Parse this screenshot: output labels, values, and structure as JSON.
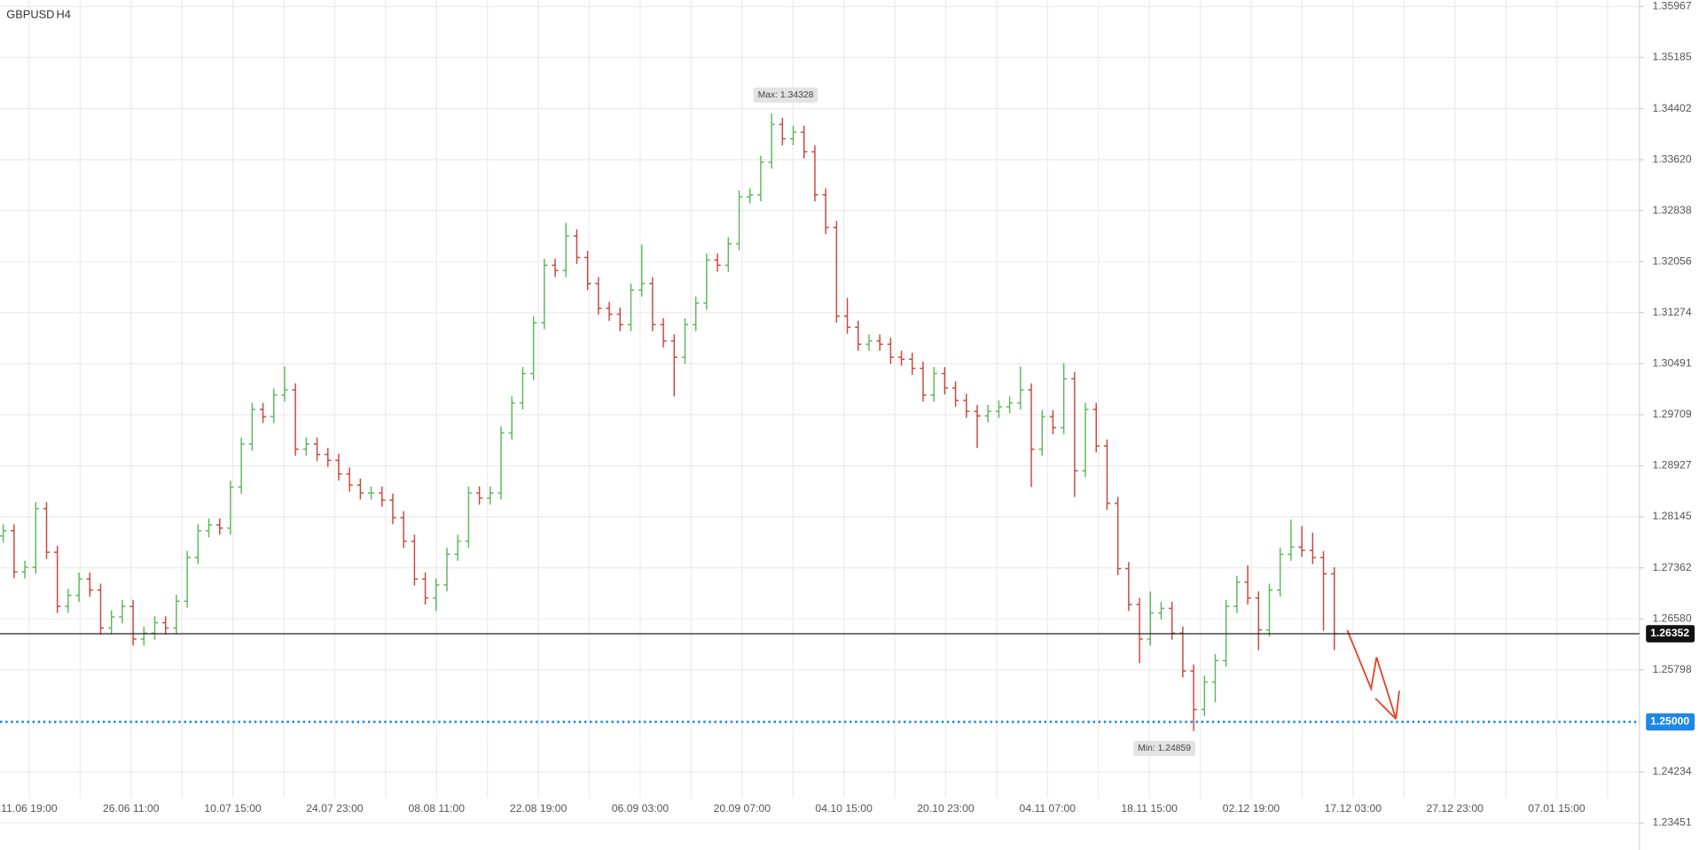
{
  "chart_data": {
    "type": "ohlc",
    "title": "GBPUSD",
    "timeframe": "H4",
    "categories": [
      "11.06 19:00",
      "26.06 11:00",
      "10.07 15:00",
      "24.07 23:00",
      "08.08 11:00",
      "22.08 19:00",
      "06.09 03:00",
      "20.09 07:00",
      "04.10 15:00",
      "20.10 23:00",
      "04.11 07:00",
      "18.11 15:00",
      "02.12 19:00",
      "17.12 03:00",
      "27.12 23:00",
      "07.01 15:00"
    ],
    "open": [
      1.2785,
      1.2793,
      1.273,
      1.2737,
      1.2827,
      1.276,
      1.2677,
      1.2694,
      1.2719,
      1.2702,
      1.2644,
      1.2661,
      1.2677,
      1.2627,
      1.2636,
      1.2652,
      1.2644,
      1.2685,
      1.2752,
      1.2793,
      1.2802,
      1.2797,
      1.286,
      1.2926,
      1.2979,
      1.2968,
      1.3001,
      1.3009,
      1.2918,
      1.2926,
      1.291,
      1.2901,
      1.288,
      1.2863,
      1.2851,
      1.2851,
      1.284,
      1.2813,
      1.2777,
      1.2719,
      1.269,
      1.271,
      1.2757,
      1.2777,
      1.2851,
      1.2843,
      1.2851,
      1.2943,
      1.2989,
      1.3034,
      1.3112,
      1.32,
      1.3192,
      1.3245,
      1.3212,
      1.3172,
      1.3134,
      1.3125,
      1.3109,
      1.3162,
      1.3172,
      1.3109,
      1.3084,
      1.3059,
      1.3109,
      1.3142,
      1.3208,
      1.32,
      1.3233,
      1.3305,
      1.3308,
      1.3358,
      1.3416,
      1.3394,
      1.3404,
      1.3374,
      1.3308,
      1.3258,
      1.3122,
      1.3105,
      1.3079,
      1.3084,
      1.3079,
      1.3059,
      1.3056,
      1.3042,
      1.3001,
      1.3034,
      1.3012,
      1.2993,
      1.2976,
      1.2969,
      1.2976,
      1.2983,
      1.2989,
      1.3009,
      1.2918,
      1.2968,
      1.2951,
      1.3026,
      1.2885,
      1.2979,
      1.2923,
      1.2835,
      1.2735,
      1.268,
      1.2627,
      1.2667,
      1.2674,
      1.2636,
      1.2578,
      1.2519,
      1.2561,
      1.2594,
      1.2677,
      1.2714,
      1.269,
      1.2641,
      1.2702,
      1.2757,
      1.2768,
      1.2763,
      1.2752,
      1.2727
    ],
    "high": [
      1.2803,
      1.2803,
      1.2747,
      1.2837,
      1.2837,
      1.277,
      1.2704,
      1.2729,
      1.2729,
      1.2712,
      1.2671,
      1.2687,
      1.2687,
      1.2646,
      1.2662,
      1.2662,
      1.2695,
      1.2762,
      1.2803,
      1.2812,
      1.2812,
      1.287,
      1.2936,
      1.2989,
      1.2989,
      1.3011,
      1.3045,
      1.3019,
      1.2936,
      1.2936,
      1.292,
      1.2911,
      1.289,
      1.2873,
      1.2861,
      1.2861,
      1.285,
      1.2823,
      1.2787,
      1.2729,
      1.272,
      1.2767,
      1.2787,
      1.2861,
      1.2861,
      1.2861,
      1.2953,
      1.2999,
      1.3044,
      1.3122,
      1.321,
      1.321,
      1.3265,
      1.3255,
      1.3222,
      1.3182,
      1.3144,
      1.3135,
      1.3172,
      1.3232,
      1.3182,
      1.3119,
      1.3094,
      1.3119,
      1.3152,
      1.3218,
      1.3218,
      1.3243,
      1.3315,
      1.3318,
      1.3368,
      1.34328,
      1.3426,
      1.3414,
      1.3414,
      1.3384,
      1.3318,
      1.3268,
      1.315,
      1.3115,
      1.3094,
      1.3094,
      1.3089,
      1.3069,
      1.3066,
      1.3052,
      1.3044,
      1.3044,
      1.3022,
      1.3003,
      1.2986,
      1.2986,
      1.2993,
      1.2999,
      1.3045,
      1.3019,
      1.2978,
      1.2978,
      1.305,
      1.3036,
      1.2989,
      1.2989,
      1.2933,
      1.2845,
      1.2745,
      1.269,
      1.27,
      1.2684,
      1.2684,
      1.2646,
      1.2588,
      1.2571,
      1.2604,
      1.2687,
      1.2724,
      1.274,
      1.27,
      1.2712,
      1.2767,
      1.281,
      1.28,
      1.279,
      1.2762,
      1.2737
    ],
    "low": [
      1.2775,
      1.272,
      1.272,
      1.2727,
      1.275,
      1.2667,
      1.2667,
      1.2684,
      1.2692,
      1.2634,
      1.2634,
      1.2651,
      1.2617,
      1.2617,
      1.2626,
      1.2634,
      1.2634,
      1.2675,
      1.2742,
      1.2783,
      1.2787,
      1.2787,
      1.285,
      1.2916,
      1.2958,
      1.2958,
      1.2991,
      1.2908,
      1.2908,
      1.29,
      1.2891,
      1.287,
      1.2853,
      1.2841,
      1.2841,
      1.283,
      1.2803,
      1.2767,
      1.2709,
      1.268,
      1.267,
      1.27,
      1.2747,
      1.2767,
      1.2833,
      1.2833,
      1.2841,
      1.2933,
      1.2979,
      1.3024,
      1.3102,
      1.3182,
      1.3182,
      1.3202,
      1.3162,
      1.3124,
      1.3115,
      1.3099,
      1.3099,
      1.3152,
      1.3099,
      1.3074,
      1.2999,
      1.3049,
      1.3099,
      1.3132,
      1.319,
      1.319,
      1.3223,
      1.3295,
      1.3298,
      1.3348,
      1.3384,
      1.3384,
      1.3364,
      1.3298,
      1.3248,
      1.3112,
      1.3095,
      1.3069,
      1.3069,
      1.3069,
      1.3049,
      1.3046,
      1.3032,
      1.2991,
      1.2991,
      1.3002,
      1.2983,
      1.2966,
      1.292,
      1.2959,
      1.2966,
      1.2973,
      1.2979,
      1.286,
      1.2908,
      1.2941,
      1.2941,
      1.2845,
      1.2875,
      1.2913,
      1.2825,
      1.2725,
      1.267,
      1.259,
      1.2617,
      1.2657,
      1.2626,
      1.2568,
      1.24859,
      1.2509,
      1.253,
      1.2584,
      1.2667,
      1.268,
      1.261,
      1.2631,
      1.2692,
      1.2747,
      1.2753,
      1.2742,
      1.264,
      1.261
    ],
    "close": [
      1.2793,
      1.273,
      1.2737,
      1.2827,
      1.276,
      1.2677,
      1.2694,
      1.2719,
      1.2702,
      1.2644,
      1.2661,
      1.2677,
      1.2627,
      1.2636,
      1.2652,
      1.2644,
      1.2685,
      1.2752,
      1.2793,
      1.2802,
      1.2797,
      1.286,
      1.2926,
      1.2979,
      1.2968,
      1.3001,
      1.3009,
      1.2918,
      1.2926,
      1.291,
      1.2901,
      1.288,
      1.2863,
      1.2851,
      1.2851,
      1.284,
      1.2813,
      1.2777,
      1.2719,
      1.269,
      1.271,
      1.2757,
      1.2777,
      1.2851,
      1.2843,
      1.2851,
      1.2943,
      1.2989,
      1.3034,
      1.3112,
      1.32,
      1.3192,
      1.3245,
      1.3212,
      1.3172,
      1.3134,
      1.3125,
      1.3109,
      1.3162,
      1.3172,
      1.3109,
      1.3084,
      1.3059,
      1.3109,
      1.3142,
      1.3208,
      1.32,
      1.3233,
      1.3305,
      1.3308,
      1.3358,
      1.3416,
      1.3394,
      1.3404,
      1.3374,
      1.3308,
      1.3258,
      1.3122,
      1.3105,
      1.3079,
      1.3084,
      1.3079,
      1.3059,
      1.3056,
      1.3042,
      1.3001,
      1.3034,
      1.3012,
      1.2993,
      1.2976,
      1.2969,
      1.2976,
      1.2983,
      1.2989,
      1.3009,
      1.2918,
      1.2968,
      1.2951,
      1.3026,
      1.2885,
      1.2979,
      1.2923,
      1.2835,
      1.2735,
      1.268,
      1.2627,
      1.2667,
      1.2674,
      1.2636,
      1.2578,
      1.2519,
      1.2561,
      1.2594,
      1.2677,
      1.2714,
      1.269,
      1.2641,
      1.2702,
      1.2757,
      1.2768,
      1.2763,
      1.2752,
      1.2727,
      1.26352
    ],
    "up_color": "#5cb85c",
    "down_color": "#c9473d",
    "ylim": [
      1.23036,
      1.36067
    ],
    "yticks": [
      1.35967,
      1.35185,
      1.34402,
      {
        "value": 1.3362,
        "label": "1.33620"
      },
      1.32838,
      1.32056,
      1.31274,
      1.30491,
      1.29709,
      1.28927,
      1.28145,
      1.27362,
      {
        "value": 1.2658,
        "label": "1.26580"
      },
      1.25798,
      1.24234,
      1.23451
    ],
    "grid": true,
    "price_line": 1.26352,
    "level_line": {
      "value": 1.25,
      "label": "1.25000"
    },
    "max_label": "Max: 1.34328",
    "min_label": "Min: 1.24859"
  }
}
